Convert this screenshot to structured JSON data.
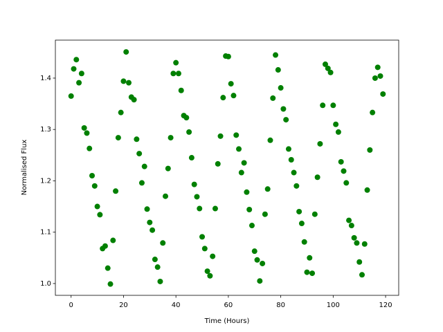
{
  "chart_data": {
    "type": "scatter",
    "xlabel": "Time (Hours)",
    "ylabel": "Normalised Flux",
    "color": "#008000",
    "x": [
      0,
      1,
      2,
      3,
      4,
      5,
      6,
      7,
      8,
      9,
      10,
      11,
      12,
      13,
      14,
      15,
      16,
      17,
      18,
      19,
      20,
      21,
      22,
      23,
      24,
      25,
      26,
      27,
      28,
      29,
      30,
      31,
      32,
      33,
      34,
      35,
      36,
      37,
      38,
      39,
      40,
      41,
      42,
      43,
      44,
      45,
      46,
      47,
      48,
      49,
      50,
      51,
      52,
      53,
      54,
      55,
      56,
      57,
      58,
      59,
      60,
      61,
      62,
      63,
      64,
      65,
      66,
      67,
      68,
      69,
      70,
      71,
      72,
      73,
      74,
      75,
      76,
      77,
      78,
      79,
      80,
      81,
      82,
      83,
      84,
      85,
      86,
      87,
      88,
      89,
      90,
      91,
      92,
      93,
      94,
      95,
      96,
      97,
      98,
      99,
      100,
      101,
      102,
      103,
      104,
      105,
      106,
      107,
      108,
      109,
      110,
      111,
      112,
      113,
      114,
      115,
      116,
      117,
      118,
      119
    ],
    "values": [
      1.365,
      1.418,
      1.436,
      1.391,
      1.409,
      1.303,
      1.293,
      1.263,
      1.21,
      1.19,
      1.15,
      1.134,
      1.068,
      1.073,
      1.03,
      0.999,
      1.084,
      1.18,
      1.284,
      1.333,
      1.394,
      1.451,
      1.391,
      1.363,
      1.358,
      1.281,
      1.253,
      1.196,
      1.228,
      1.145,
      1.119,
      1.104,
      1.047,
      1.032,
      1.004,
      1.079,
      1.17,
      1.224,
      1.284,
      1.409,
      1.43,
      1.409,
      1.376,
      1.327,
      1.323,
      1.295,
      1.245,
      1.193,
      1.169,
      1.146,
      1.091,
      1.068,
      1.024,
      1.015,
      1.053,
      1.146,
      1.233,
      1.287,
      1.362,
      1.443,
      1.442,
      1.389,
      1.366,
      1.289,
      1.262,
      1.216,
      1.235,
      1.178,
      1.144,
      1.113,
      1.063,
      1.046,
      1.005,
      1.039,
      1.135,
      1.184,
      1.279,
      1.361,
      1.445,
      1.416,
      1.381,
      1.34,
      1.319,
      1.262,
      1.241,
      1.216,
      1.19,
      1.14,
      1.117,
      1.081,
      1.022,
      1.05,
      1.02,
      1.135,
      1.207,
      1.272,
      1.347,
      1.427,
      1.419,
      1.411,
      1.347,
      1.31,
      1.295,
      1.237,
      1.219,
      1.196,
      1.123,
      1.113,
      1.089,
      1.079,
      1.042,
      1.017,
      1.077,
      1.182,
      1.26,
      1.333,
      1.4,
      1.421,
      1.404,
      1.369
    ],
    "xlim": [
      -6,
      125
    ],
    "xticks": [
      0,
      20,
      40,
      60,
      80,
      100,
      120
    ],
    "ylim": [
      0.977,
      1.474
    ],
    "yticks": [
      {
        "value": 1,
        "label": "1.0"
      },
      1.1,
      1.2,
      1.3,
      1.4
    ]
  }
}
